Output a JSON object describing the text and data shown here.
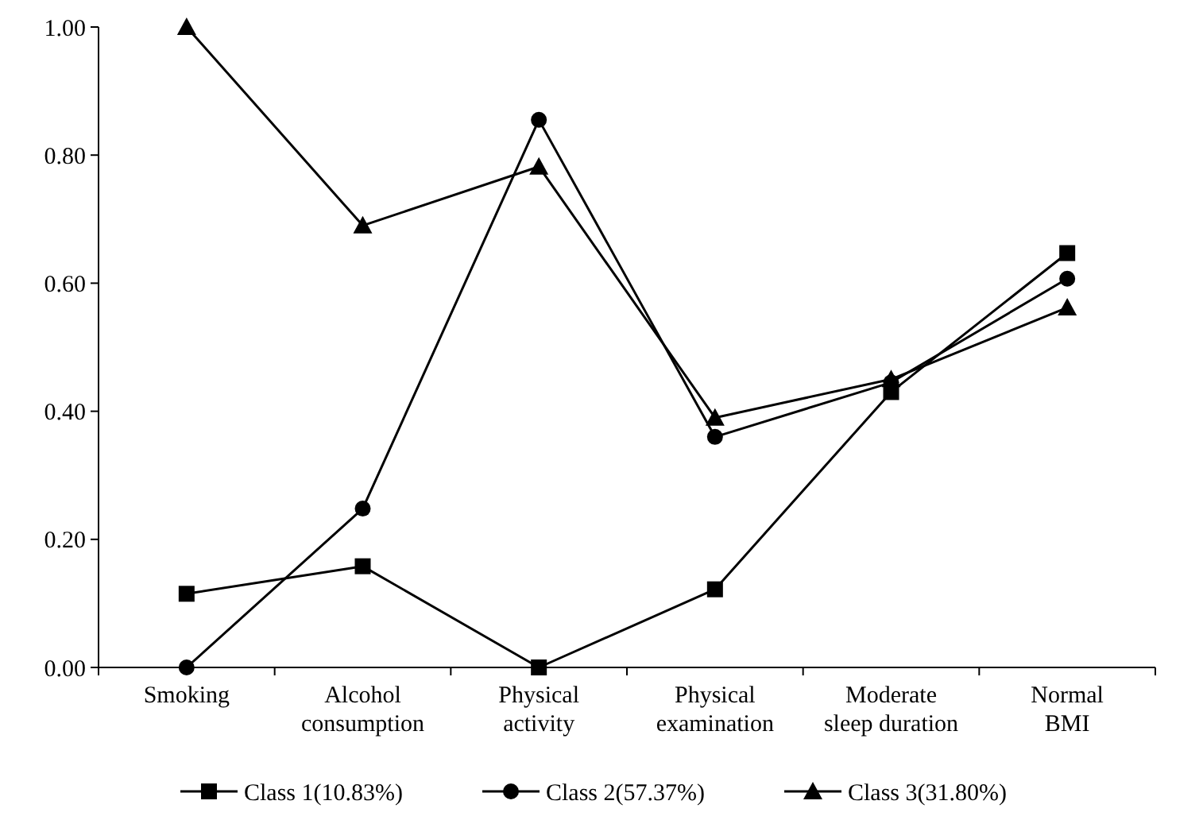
{
  "chart_data": {
    "type": "line",
    "categories": [
      "Smoking",
      "Alcohol consumption",
      "Physical activity",
      "Physical examination",
      "Moderate sleep duration",
      "Normal BMI"
    ],
    "series": [
      {
        "name": "Class 1(10.83%)",
        "color": "#000000",
        "marker": "square",
        "values": [
          0.115,
          0.158,
          0.0,
          0.122,
          0.43,
          0.647
        ]
      },
      {
        "name": "Class 2(57.37%)",
        "color": "#000000",
        "marker": "circle",
        "values": [
          0.0,
          0.248,
          0.855,
          0.36,
          0.445,
          0.607
        ]
      },
      {
        "name": "Class 3(31.80%)",
        "color": "#000000",
        "marker": "triangle",
        "values": [
          1.0,
          0.69,
          0.782,
          0.39,
          0.45,
          0.562
        ]
      }
    ],
    "ylim": [
      0,
      1
    ],
    "yticks": [
      {
        "value": 0,
        "label": "0.00"
      },
      {
        "value": 0.2,
        "label": "0.20"
      },
      {
        "value": 0.4,
        "label": "0.40"
      },
      {
        "value": 0.6,
        "label": "0.60"
      },
      {
        "value": 0.8,
        "label": "0.80"
      },
      {
        "value": 1,
        "label": "1.00"
      }
    ],
    "grid": false,
    "legend": "bottom",
    "line_style": "solid"
  }
}
